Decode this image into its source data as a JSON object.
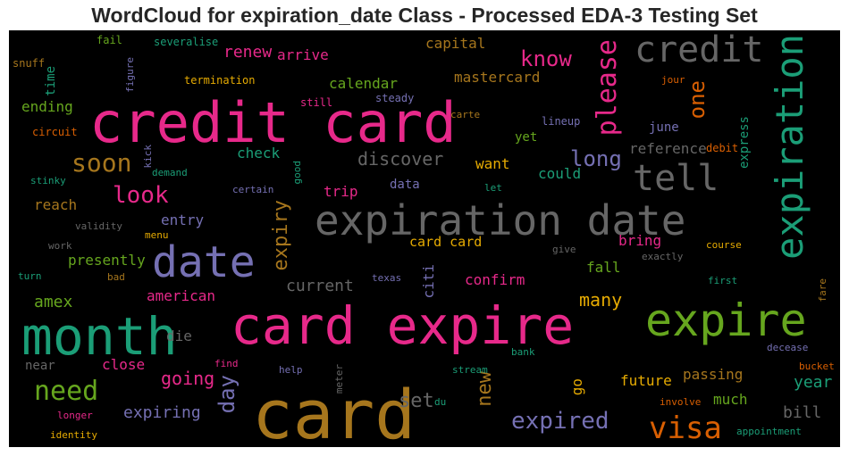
{
  "chart_data": {
    "type": "wordcloud",
    "title": "WordCloud for expiration_date Class - Processed EDA-3 Testing Set",
    "background": "#000000",
    "words": [
      {
        "text": "card expire",
        "color": "#e7298a"
      },
      {
        "text": "card",
        "color": "#a6761d"
      },
      {
        "text": "credit card",
        "color": "#e7298a"
      },
      {
        "text": "month",
        "color": "#1b9e77"
      },
      {
        "text": "expire",
        "color": "#66a61e"
      },
      {
        "text": "expiration date",
        "color": "#666666"
      },
      {
        "text": "date",
        "color": "#7570b3"
      },
      {
        "text": "expiration",
        "color": "#1b9e77"
      },
      {
        "text": "credit",
        "color": "#666666"
      },
      {
        "text": "tell",
        "color": "#666666"
      },
      {
        "text": "visa",
        "color": "#d95f02"
      },
      {
        "text": "need",
        "color": "#66a61e"
      },
      {
        "text": "soon",
        "color": "#a6761d"
      },
      {
        "text": "please",
        "color": "#e7298a"
      },
      {
        "text": "know",
        "color": "#e7298a"
      },
      {
        "text": "expired",
        "color": "#7570b3"
      },
      {
        "text": "look",
        "color": "#e7298a"
      },
      {
        "text": "long",
        "color": "#7570b3"
      },
      {
        "text": "one",
        "color": "#d95f02"
      },
      {
        "text": "expiry",
        "color": "#a6761d"
      },
      {
        "text": "day",
        "color": "#7570b3"
      },
      {
        "text": "new",
        "color": "#a6761d"
      },
      {
        "text": "discover",
        "color": "#666666"
      },
      {
        "text": "expiring",
        "color": "#7570b3"
      },
      {
        "text": "renew",
        "color": "#e7298a"
      },
      {
        "text": "going",
        "color": "#e7298a"
      },
      {
        "text": "many",
        "color": "#e6ab02"
      },
      {
        "text": "amex",
        "color": "#66a61e"
      },
      {
        "text": "set",
        "color": "#666666"
      },
      {
        "text": "current",
        "color": "#666666"
      },
      {
        "text": "passing",
        "color": "#a6761d"
      },
      {
        "text": "year",
        "color": "#1b9e77"
      },
      {
        "text": "bill",
        "color": "#666666"
      },
      {
        "text": "future",
        "color": "#e6ab02"
      },
      {
        "text": "reference",
        "color": "#666666"
      },
      {
        "text": "capital",
        "color": "#a6761d"
      },
      {
        "text": "mastercard",
        "color": "#a6761d"
      },
      {
        "text": "calendar",
        "color": "#66a61e"
      },
      {
        "text": "arrive",
        "color": "#e7298a"
      },
      {
        "text": "check",
        "color": "#1b9e77"
      },
      {
        "text": "trip",
        "color": "#e7298a"
      },
      {
        "text": "reach",
        "color": "#a6761d"
      },
      {
        "text": "entry",
        "color": "#7570b3"
      },
      {
        "text": "presently",
        "color": "#66a61e"
      },
      {
        "text": "american",
        "color": "#e7298a"
      },
      {
        "text": "card card",
        "color": "#e6ab02"
      },
      {
        "text": "confirm",
        "color": "#e7298a"
      },
      {
        "text": "citi",
        "color": "#7570b3"
      },
      {
        "text": "bring",
        "color": "#e7298a"
      },
      {
        "text": "fall",
        "color": "#66a61e"
      },
      {
        "text": "could",
        "color": "#1b9e77"
      },
      {
        "text": "want",
        "color": "#e6ab02"
      },
      {
        "text": "june",
        "color": "#7570b3"
      },
      {
        "text": "yet",
        "color": "#66a61e"
      },
      {
        "text": "ending",
        "color": "#66a61e"
      },
      {
        "text": "close",
        "color": "#e7298a"
      },
      {
        "text": "much",
        "color": "#66a61e"
      },
      {
        "text": "go",
        "color": "#e6ab02"
      },
      {
        "text": "express",
        "color": "#1b9e77"
      },
      {
        "text": "data",
        "color": "#7570b3"
      },
      {
        "text": "time",
        "color": "#1b9e77"
      },
      {
        "text": "die",
        "color": "#666666"
      },
      {
        "text": "near",
        "color": "#666666"
      },
      {
        "text": "fail",
        "color": "#66a61e"
      },
      {
        "text": "severalise",
        "color": "#1b9e77"
      },
      {
        "text": "snuff",
        "color": "#a6761d"
      },
      {
        "text": "figure",
        "color": "#7570b3"
      },
      {
        "text": "termination",
        "color": "#e6ab02"
      },
      {
        "text": "jour",
        "color": "#d95f02"
      },
      {
        "text": "still",
        "color": "#e7298a"
      },
      {
        "text": "steady",
        "color": "#7570b3"
      },
      {
        "text": "carte",
        "color": "#a6761d"
      },
      {
        "text": "circuit",
        "color": "#d95f02"
      },
      {
        "text": "lineup",
        "color": "#7570b3"
      },
      {
        "text": "debit",
        "color": "#d95f02"
      },
      {
        "text": "kick",
        "color": "#7570b3"
      },
      {
        "text": "good",
        "color": "#1b9e77"
      },
      {
        "text": "demand",
        "color": "#1b9e77"
      },
      {
        "text": "stinky",
        "color": "#1b9e77"
      },
      {
        "text": "certain",
        "color": "#7570b3"
      },
      {
        "text": "let",
        "color": "#1b9e77"
      },
      {
        "text": "validity",
        "color": "#666666"
      },
      {
        "text": "menu",
        "color": "#e6ab02"
      },
      {
        "text": "work",
        "color": "#666666"
      },
      {
        "text": "give",
        "color": "#666666"
      },
      {
        "text": "exactly",
        "color": "#666666"
      },
      {
        "text": "course",
        "color": "#e6ab02"
      },
      {
        "text": "turn",
        "color": "#1b9e77"
      },
      {
        "text": "bad",
        "color": "#a6761d"
      },
      {
        "text": "texas",
        "color": "#7570b3"
      },
      {
        "text": "first",
        "color": "#1b9e77"
      },
      {
        "text": "fare",
        "color": "#a6761d"
      },
      {
        "text": "decease",
        "color": "#7570b3"
      },
      {
        "text": "bank",
        "color": "#1b9e77"
      },
      {
        "text": "find",
        "color": "#e7298a"
      },
      {
        "text": "meter",
        "color": "#666666"
      },
      {
        "text": "help",
        "color": "#7570b3"
      },
      {
        "text": "stream",
        "color": "#1b9e77"
      },
      {
        "text": "bucket",
        "color": "#d95f02"
      },
      {
        "text": "involve",
        "color": "#d95f02"
      },
      {
        "text": "du",
        "color": "#1b9e77"
      },
      {
        "text": "longer",
        "color": "#e7298a"
      },
      {
        "text": "identity",
        "color": "#e6ab02"
      },
      {
        "text": "appointment",
        "color": "#1b9e77"
      }
    ]
  }
}
